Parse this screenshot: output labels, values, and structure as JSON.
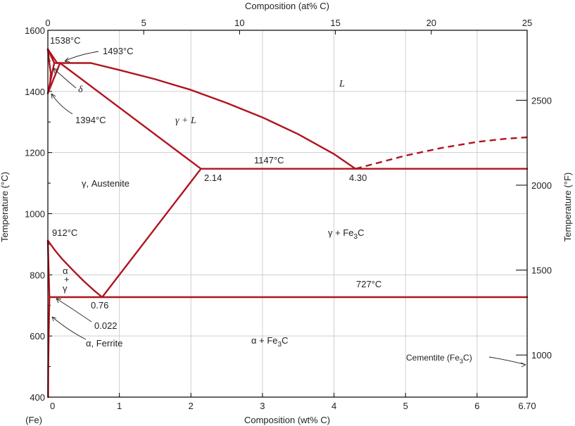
{
  "chart_data": {
    "type": "line",
    "x_axis_bottom": {
      "label": "Composition (wt% C)",
      "range": [
        0,
        6.7
      ],
      "ticks": [
        0,
        1,
        2,
        3,
        4,
        5,
        6,
        6.7
      ],
      "tick_labels": [
        "0",
        "1",
        "2",
        "3",
        "4",
        "5",
        "6",
        "6.70"
      ],
      "origin_label": "(Fe)"
    },
    "x_axis_top": {
      "label": "Composition (at% C)",
      "range": [
        0,
        25
      ],
      "ticks": [
        0,
        5,
        10,
        15,
        20,
        25
      ],
      "tick_labels": [
        "0",
        "5",
        "10",
        "15",
        "20",
        "25"
      ]
    },
    "y_axis_left": {
      "label": "Temperature (°C)",
      "range": [
        400,
        1600
      ],
      "ticks": [
        400,
        600,
        800,
        1000,
        1200,
        1400,
        1600
      ],
      "tick_labels": [
        "400",
        "600",
        "800",
        "1000",
        "1200",
        "1400",
        "1600"
      ]
    },
    "y_axis_right": {
      "label": "Temperature (°F)",
      "ticks": [
        1000,
        1500,
        2000,
        2500
      ],
      "tick_labels": [
        "1000",
        "1500",
        "2000",
        "2500"
      ]
    },
    "grid": true,
    "series": [
      {
        "id": "liquidus_low",
        "style": "solid",
        "points": [
          [
            0,
            1538
          ],
          [
            0.09,
            1493
          ]
        ]
      },
      {
        "id": "delta_solidus",
        "style": "solid",
        "points": [
          [
            0,
            1538
          ],
          [
            0.13,
            1493
          ]
        ]
      },
      {
        "id": "peritectic",
        "style": "solid",
        "points": [
          [
            0.09,
            1493
          ],
          [
            0.6,
            1493
          ]
        ]
      },
      {
        "id": "liquidus",
        "style": "solid",
        "points": [
          [
            0.6,
            1493
          ],
          [
            1.0,
            1470
          ],
          [
            1.5,
            1440
          ],
          [
            2.0,
            1405
          ],
          [
            2.5,
            1362
          ],
          [
            3.0,
            1315
          ],
          [
            3.5,
            1260
          ],
          [
            4.0,
            1195
          ],
          [
            4.3,
            1147
          ]
        ]
      },
      {
        "id": "liquidus_cementite",
        "style": "dashed",
        "points": [
          [
            4.3,
            1147
          ],
          [
            5.0,
            1190
          ],
          [
            5.5,
            1215
          ],
          [
            6.0,
            1235
          ],
          [
            6.4,
            1245
          ],
          [
            6.7,
            1250
          ]
        ]
      },
      {
        "id": "solidus_austenite",
        "style": "solid",
        "points": [
          [
            0.17,
            1493
          ],
          [
            2.14,
            1147
          ]
        ]
      },
      {
        "id": "delta_gamma_upper",
        "style": "solid",
        "points": [
          [
            0.13,
            1493
          ],
          [
            0.17,
            1493
          ]
        ]
      },
      {
        "id": "delta_gamma_left",
        "style": "solid",
        "points": [
          [
            0,
            1394
          ],
          [
            0.09,
            1493
          ]
        ]
      },
      {
        "id": "delta_gamma_right",
        "style": "solid",
        "points": [
          [
            0,
            1394
          ],
          [
            0.17,
            1493
          ]
        ]
      },
      {
        "id": "delta_boundary",
        "style": "solid",
        "points": [
          [
            0,
            1538
          ],
          [
            0.02,
            1495
          ],
          [
            0.04,
            1460
          ],
          [
            0.03,
            1420
          ],
          [
            0,
            1394
          ]
        ]
      },
      {
        "id": "eutectic",
        "style": "solid",
        "points": [
          [
            2.14,
            1147
          ],
          [
            6.7,
            1147
          ]
        ]
      },
      {
        "id": "acm",
        "style": "solid",
        "points": [
          [
            2.14,
            1147
          ],
          [
            0.76,
            727
          ]
        ]
      },
      {
        "id": "a3",
        "style": "solid",
        "points": [
          [
            0,
            912
          ],
          [
            0.1,
            880
          ],
          [
            0.2,
            852
          ],
          [
            0.35,
            815
          ],
          [
            0.5,
            780
          ],
          [
            0.65,
            748
          ],
          [
            0.76,
            727
          ]
        ]
      },
      {
        "id": "alpha_solvus_upper",
        "style": "solid",
        "points": [
          [
            0,
            912
          ],
          [
            0.022,
            727
          ]
        ]
      },
      {
        "id": "eutectoid",
        "style": "solid",
        "points": [
          [
            0.022,
            727
          ],
          [
            6.7,
            727
          ]
        ]
      },
      {
        "id": "alpha_solvus_lower",
        "style": "solid",
        "points": [
          [
            0.022,
            727
          ],
          [
            0.012,
            600
          ],
          [
            0.006,
            500
          ],
          [
            0.004,
            400
          ]
        ]
      }
    ],
    "annotations": {
      "t_1538": "1538°C",
      "t_1493": "1493°C",
      "t_1394": "1394°C",
      "t_1147": "1147°C",
      "t_912": "912°C",
      "t_727": "727°C",
      "c_214": "2.14",
      "c_430": "4.30",
      "c_076": "0.76",
      "c_0022": "0.022",
      "delta": "δ",
      "liquid": "L",
      "gamma_liquid": "γ + L",
      "austenite": "γ, Austenite",
      "gamma_fe3c_pre": "γ + Fe",
      "gamma_fe3c_sub": "3",
      "gamma_fe3c_post": "C",
      "alpha_gamma_1": "α",
      "alpha_gamma_2": "+",
      "alpha_gamma_3": "γ",
      "ferrite": "α, Ferrite",
      "alpha_fe3c_pre": "α + Fe",
      "alpha_fe3c_sub": "3",
      "alpha_fe3c_post": "C",
      "cementite_pre": "Cementite (Fe",
      "cementite_sub": "3",
      "cementite_post": "C)"
    }
  }
}
